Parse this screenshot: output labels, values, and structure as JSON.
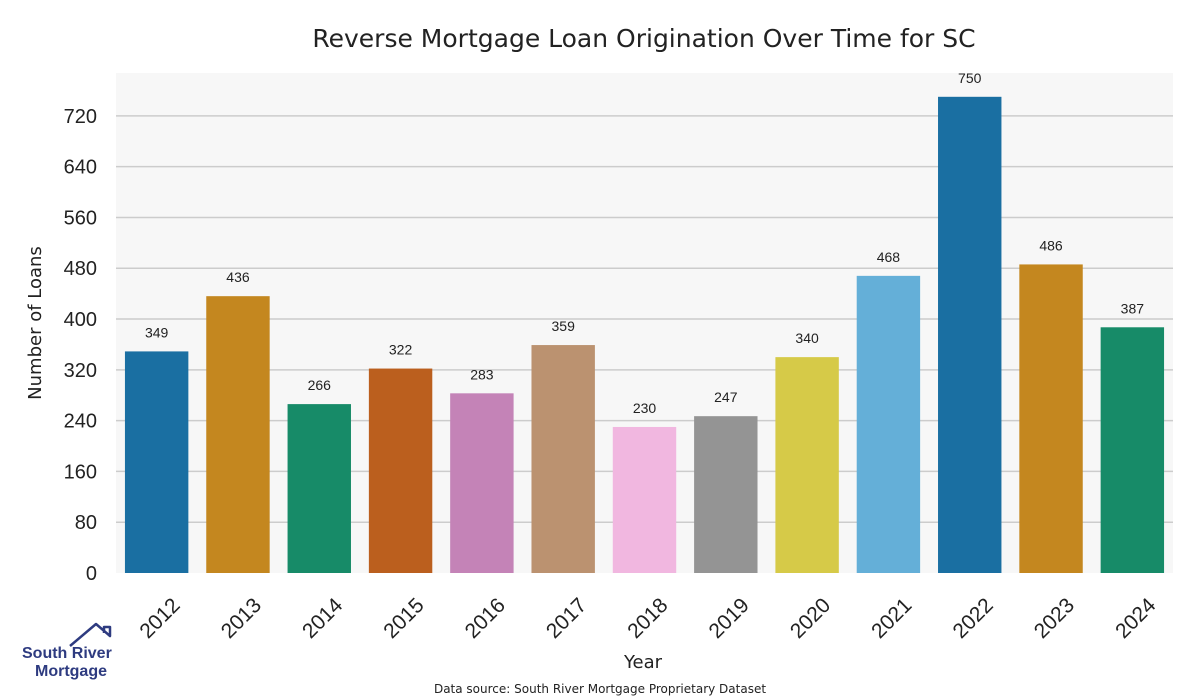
{
  "chart_data": {
    "type": "bar",
    "title": "Reverse Mortgage Loan Origination Over Time for SC",
    "xlabel": "Year",
    "ylabel": "Number of Loans",
    "categories": [
      "2012",
      "2013",
      "2014",
      "2015",
      "2016",
      "2017",
      "2018",
      "2019",
      "2020",
      "2021",
      "2022",
      "2023",
      "2024"
    ],
    "values": [
      349,
      436,
      266,
      322,
      283,
      359,
      230,
      247,
      340,
      468,
      750,
      486,
      387
    ],
    "colors": [
      "#1a6fa2",
      "#c4871f",
      "#178b68",
      "#bb5f1e",
      "#c483b7",
      "#bb9270",
      "#f1b7e0",
      "#949494",
      "#d6ca48",
      "#64afd8",
      "#1a6fa2",
      "#c4871f",
      "#178b68"
    ],
    "yticks": [
      0,
      80,
      160,
      240,
      320,
      400,
      480,
      560,
      640,
      720
    ],
    "ylim": [
      0,
      787.5
    ],
    "grid": true,
    "plot_background": "#f7f7f7",
    "grid_color": "#cccccc"
  },
  "source_note": "Data source: South River Mortgage Proprietary Dataset",
  "logo": {
    "line1": "South River",
    "line2": "Mortgage",
    "icon": "house-roof-icon"
  }
}
